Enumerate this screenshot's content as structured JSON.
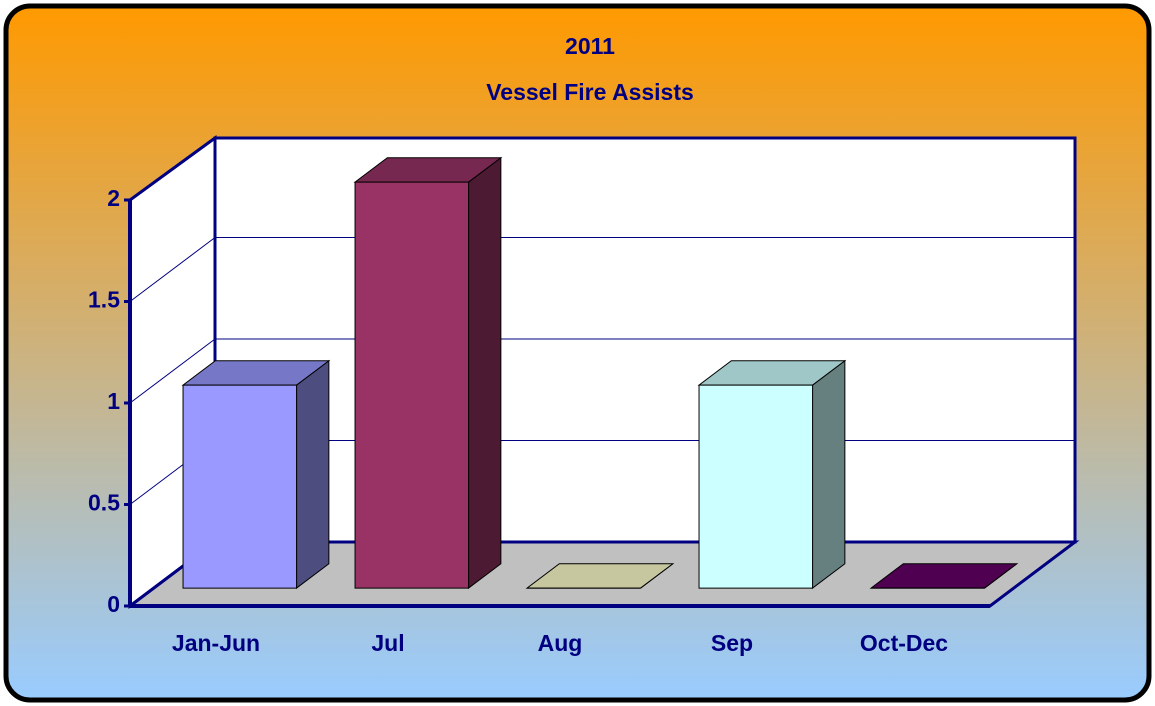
{
  "chart_data": {
    "type": "bar3d",
    "title": "2011",
    "subtitle": "Vessel Fire Assists",
    "categories": [
      "Jan-Jun",
      "Jul",
      "Aug",
      "Sep",
      "Oct-Dec"
    ],
    "values": [
      1,
      2,
      0,
      1,
      0
    ],
    "colors": [
      "#9999ff",
      "#993366",
      "#ffffcc",
      "#ccffff",
      "#660066"
    ],
    "ylim": [
      0,
      2
    ],
    "yticks": [
      0,
      0.5,
      1,
      1.5,
      2
    ],
    "grid": true
  }
}
